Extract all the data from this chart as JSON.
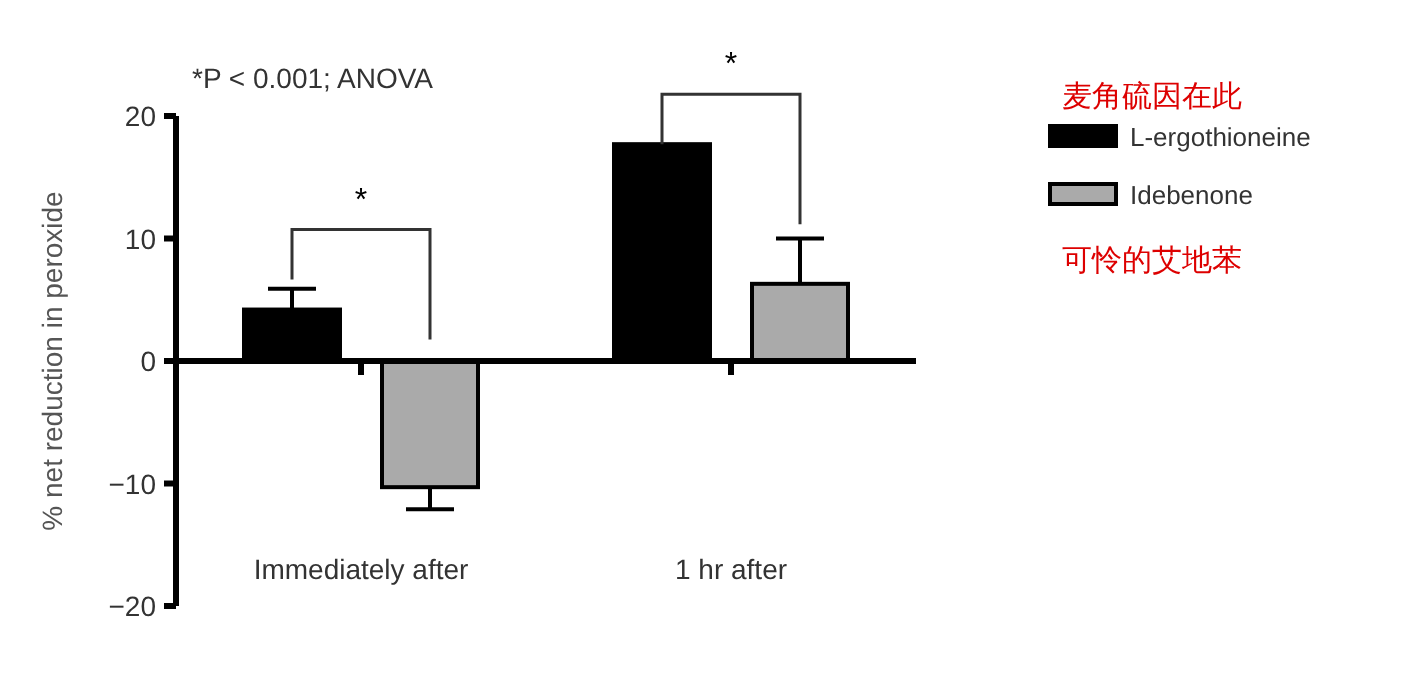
{
  "chart_data": {
    "type": "bar",
    "ylabel": "% net reduction in peroxide",
    "categories": [
      "Immediately after",
      "1 hr after"
    ],
    "series": [
      {
        "name": "L-ergothioneine",
        "color": "#000000",
        "values": [
          4.2,
          17.7
        ],
        "errors": [
          [
            4.2,
            5.9
          ],
          null
        ]
      },
      {
        "name": "Idebenone",
        "color": "#aaaaaa",
        "values": [
          -10.3,
          6.3
        ],
        "errors": [
          [
            -12.1,
            -10.3
          ],
          [
            6.3,
            10.0
          ]
        ]
      }
    ],
    "ylim": [
      -20,
      20
    ],
    "yticks": [
      -20,
      -10,
      0,
      10,
      20
    ],
    "legend": "top right",
    "annotations": [
      "*P < 0.001; ANOVA",
      "*",
      "*",
      "麦角硫因在此",
      "可怜的艾地苯"
    ]
  }
}
